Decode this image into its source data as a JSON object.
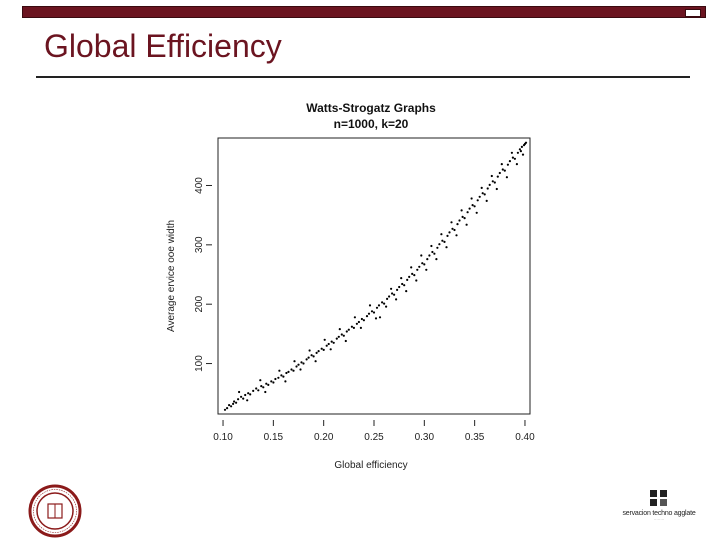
{
  "slide": {
    "title": "Global Efficiency",
    "colors": {
      "accent": "#6b1420",
      "rule": "#222222"
    },
    "seal_icon": "university-seal-icon",
    "logo_icon": "organization-logo-icon",
    "logo_text": "servacion techno agglate"
  },
  "chart_data": {
    "type": "scatter",
    "title": "Watts-Strogatz Graphs",
    "subtitle": "n=1000, k=20",
    "xlabel": "Global efficiency",
    "ylabel": "Average ervice ooe width",
    "xlim": [
      0.095,
      0.405
    ],
    "ylim": [
      15,
      480
    ],
    "xticks": [
      0.1,
      0.15,
      0.2,
      0.25,
      0.3,
      0.35,
      0.4
    ],
    "xtick_labels": [
      "0.10",
      "0.15",
      "0.20",
      "0.25",
      "0.30",
      "0.35",
      "0.40"
    ],
    "yticks": [
      100,
      200,
      300,
      400
    ],
    "ytick_labels": [
      "100",
      "200",
      "300",
      "400"
    ],
    "grid": false,
    "legend": "none",
    "point_color": "#000000",
    "series": [
      {
        "points": [
          [
            0.102,
            22
          ],
          [
            0.104,
            25
          ],
          [
            0.106,
            30
          ],
          [
            0.108,
            28
          ],
          [
            0.11,
            32
          ],
          [
            0.111,
            36
          ],
          [
            0.113,
            34
          ],
          [
            0.115,
            40
          ],
          [
            0.118,
            44
          ],
          [
            0.12,
            41
          ],
          [
            0.122,
            47
          ],
          [
            0.125,
            50
          ],
          [
            0.127,
            48
          ],
          [
            0.13,
            54
          ],
          [
            0.133,
            58
          ],
          [
            0.135,
            55
          ],
          [
            0.138,
            62
          ],
          [
            0.14,
            60
          ],
          [
            0.143,
            66
          ],
          [
            0.145,
            64
          ],
          [
            0.148,
            70
          ],
          [
            0.15,
            68
          ],
          [
            0.152,
            74
          ],
          [
            0.155,
            76
          ],
          [
            0.158,
            80
          ],
          [
            0.16,
            78
          ],
          [
            0.163,
            84
          ],
          [
            0.165,
            86
          ],
          [
            0.168,
            90
          ],
          [
            0.17,
            88
          ],
          [
            0.173,
            95
          ],
          [
            0.175,
            98
          ],
          [
            0.178,
            102
          ],
          [
            0.18,
            100
          ],
          [
            0.183,
            107
          ],
          [
            0.185,
            110
          ],
          [
            0.188,
            114
          ],
          [
            0.19,
            112
          ],
          [
            0.193,
            118
          ],
          [
            0.195,
            121
          ],
          [
            0.198,
            125
          ],
          [
            0.2,
            123
          ],
          [
            0.203,
            130
          ],
          [
            0.205,
            133
          ],
          [
            0.208,
            137
          ],
          [
            0.21,
            135
          ],
          [
            0.213,
            142
          ],
          [
            0.215,
            145
          ],
          [
            0.218,
            149
          ],
          [
            0.22,
            147
          ],
          [
            0.223,
            154
          ],
          [
            0.225,
            157
          ],
          [
            0.228,
            162
          ],
          [
            0.23,
            160
          ],
          [
            0.233,
            167
          ],
          [
            0.235,
            170
          ],
          [
            0.238,
            175
          ],
          [
            0.24,
            173
          ],
          [
            0.243,
            180
          ],
          [
            0.245,
            184
          ],
          [
            0.248,
            188
          ],
          [
            0.25,
            186
          ],
          [
            0.253,
            194
          ],
          [
            0.255,
            198
          ],
          [
            0.258,
            203
          ],
          [
            0.26,
            201
          ],
          [
            0.263,
            209
          ],
          [
            0.265,
            213
          ],
          [
            0.268,
            218
          ],
          [
            0.27,
            216
          ],
          [
            0.273,
            224
          ],
          [
            0.275,
            229
          ],
          [
            0.278,
            234
          ],
          [
            0.28,
            232
          ],
          [
            0.283,
            241
          ],
          [
            0.285,
            246
          ],
          [
            0.288,
            251
          ],
          [
            0.29,
            249
          ],
          [
            0.293,
            258
          ],
          [
            0.295,
            263
          ],
          [
            0.298,
            269
          ],
          [
            0.3,
            267
          ],
          [
            0.303,
            276
          ],
          [
            0.305,
            282
          ],
          [
            0.308,
            288
          ],
          [
            0.31,
            285
          ],
          [
            0.313,
            295
          ],
          [
            0.315,
            301
          ],
          [
            0.318,
            307
          ],
          [
            0.32,
            305
          ],
          [
            0.323,
            315
          ],
          [
            0.325,
            321
          ],
          [
            0.328,
            327
          ],
          [
            0.33,
            325
          ],
          [
            0.333,
            335
          ],
          [
            0.335,
            341
          ],
          [
            0.338,
            347
          ],
          [
            0.34,
            345
          ],
          [
            0.343,
            355
          ],
          [
            0.345,
            361
          ],
          [
            0.348,
            367
          ],
          [
            0.35,
            365
          ],
          [
            0.353,
            375
          ],
          [
            0.355,
            381
          ],
          [
            0.358,
            387
          ],
          [
            0.36,
            385
          ],
          [
            0.363,
            395
          ],
          [
            0.365,
            401
          ],
          [
            0.368,
            407
          ],
          [
            0.37,
            405
          ],
          [
            0.373,
            415
          ],
          [
            0.375,
            421
          ],
          [
            0.378,
            427
          ],
          [
            0.38,
            425
          ],
          [
            0.383,
            435
          ],
          [
            0.385,
            441
          ],
          [
            0.388,
            447
          ],
          [
            0.39,
            445
          ],
          [
            0.393,
            455
          ],
          [
            0.395,
            461
          ],
          [
            0.397,
            465
          ],
          [
            0.399,
            468
          ],
          [
            0.4,
            470
          ],
          [
            0.401,
            472
          ],
          [
            0.116,
            52
          ],
          [
            0.124,
            38
          ],
          [
            0.137,
            72
          ],
          [
            0.142,
            52
          ],
          [
            0.156,
            88
          ],
          [
            0.162,
            70
          ],
          [
            0.171,
            104
          ],
          [
            0.177,
            90
          ],
          [
            0.186,
            122
          ],
          [
            0.192,
            104
          ],
          [
            0.201,
            140
          ],
          [
            0.207,
            124
          ],
          [
            0.216,
            158
          ],
          [
            0.222,
            138
          ],
          [
            0.231,
            178
          ],
          [
            0.237,
            160
          ],
          [
            0.246,
            198
          ],
          [
            0.252,
            176
          ],
          [
            0.256,
            178
          ],
          [
            0.262,
            196
          ],
          [
            0.267,
            226
          ],
          [
            0.272,
            208
          ],
          [
            0.277,
            244
          ],
          [
            0.282,
            222
          ],
          [
            0.287,
            262
          ],
          [
            0.292,
            240
          ],
          [
            0.297,
            282
          ],
          [
            0.302,
            258
          ],
          [
            0.307,
            298
          ],
          [
            0.312,
            276
          ],
          [
            0.317,
            318
          ],
          [
            0.322,
            296
          ],
          [
            0.327,
            338
          ],
          [
            0.332,
            316
          ],
          [
            0.337,
            358
          ],
          [
            0.342,
            334
          ],
          [
            0.347,
            378
          ],
          [
            0.352,
            354
          ],
          [
            0.357,
            396
          ],
          [
            0.362,
            374
          ],
          [
            0.367,
            416
          ],
          [
            0.372,
            394
          ],
          [
            0.377,
            436
          ],
          [
            0.382,
            414
          ],
          [
            0.387,
            455
          ],
          [
            0.392,
            436
          ],
          [
            0.396,
            458
          ],
          [
            0.398,
            452
          ]
        ]
      }
    ]
  }
}
